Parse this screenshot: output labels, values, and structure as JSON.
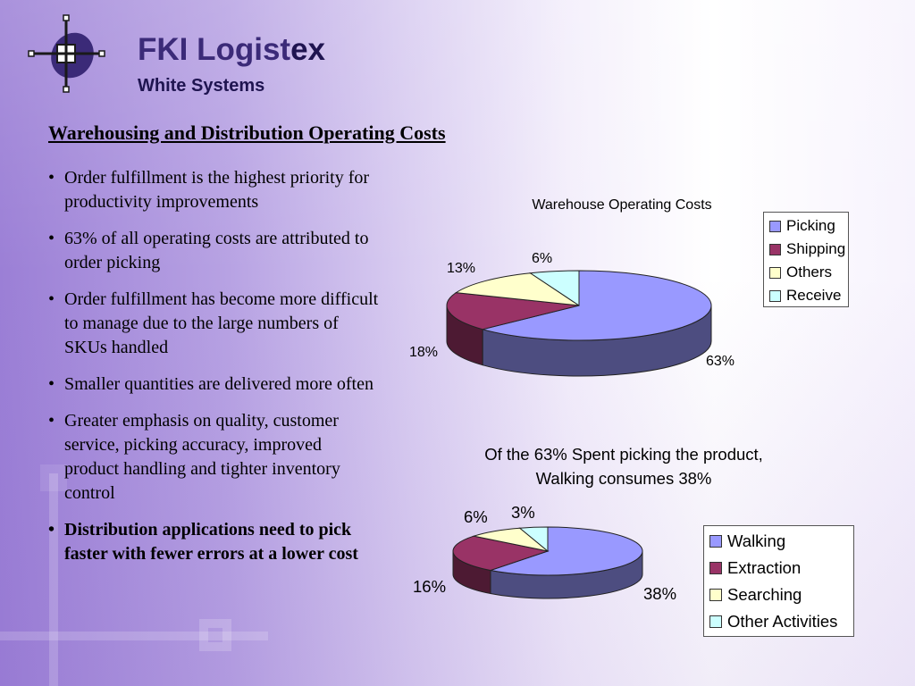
{
  "logo": {
    "text_main": "FKI Logist",
    "text_ex": "ex",
    "text_sub": "White Systems"
  },
  "slide": {
    "title": "Warehousing and Distribution Operating Costs",
    "bullets": [
      {
        "text": "Order fulfillment is the highest priority for productivity improvements",
        "bold": false
      },
      {
        "text": "63% of all operating costs are attributed to order picking",
        "bold": false
      },
      {
        "text": "Order fulfillment has become more difficult to manage due to the  large numbers of SKUs handled",
        "bold": false
      },
      {
        "text": "Smaller quantities are delivered more often",
        "bold": false
      },
      {
        "text": "Greater emphasis on quality, customer service, picking accuracy, improved product handling and tighter inventory control",
        "bold": false
      },
      {
        "text": "Distribution applications need to pick faster with fewer errors at a lower cost",
        "bold": true
      }
    ]
  },
  "colors": {
    "blue": "#9999ff",
    "blue_side": "#4d4d80",
    "maroon": "#993366",
    "maroon_side": "#4d1a33",
    "yellow": "#ffffcc",
    "yellow_side": "#80806a",
    "cyan": "#ccffff",
    "cyan_side": "#6a8080"
  },
  "chart_data": [
    {
      "type": "pie",
      "title": "Warehouse Operating Costs",
      "categories": [
        "Picking",
        "Shipping",
        "Others",
        "Receive"
      ],
      "values": [
        63,
        18,
        13,
        6
      ],
      "labels": [
        "63%",
        "18%",
        "13%",
        "6%"
      ],
      "legend_position": "right",
      "style": "3d"
    },
    {
      "type": "pie",
      "title": "Of the 63% Spent picking the product, Walking consumes 38%",
      "title_lines": [
        "Of the 63% Spent picking the product,",
        "Walking consumes 38%"
      ],
      "categories": [
        "Walking",
        "Extraction",
        "Searching",
        "Other Activities"
      ],
      "values": [
        38,
        16,
        6,
        3
      ],
      "labels": [
        "38%",
        "16%",
        "6%",
        "3%"
      ],
      "legend_position": "right",
      "style": "3d"
    }
  ]
}
